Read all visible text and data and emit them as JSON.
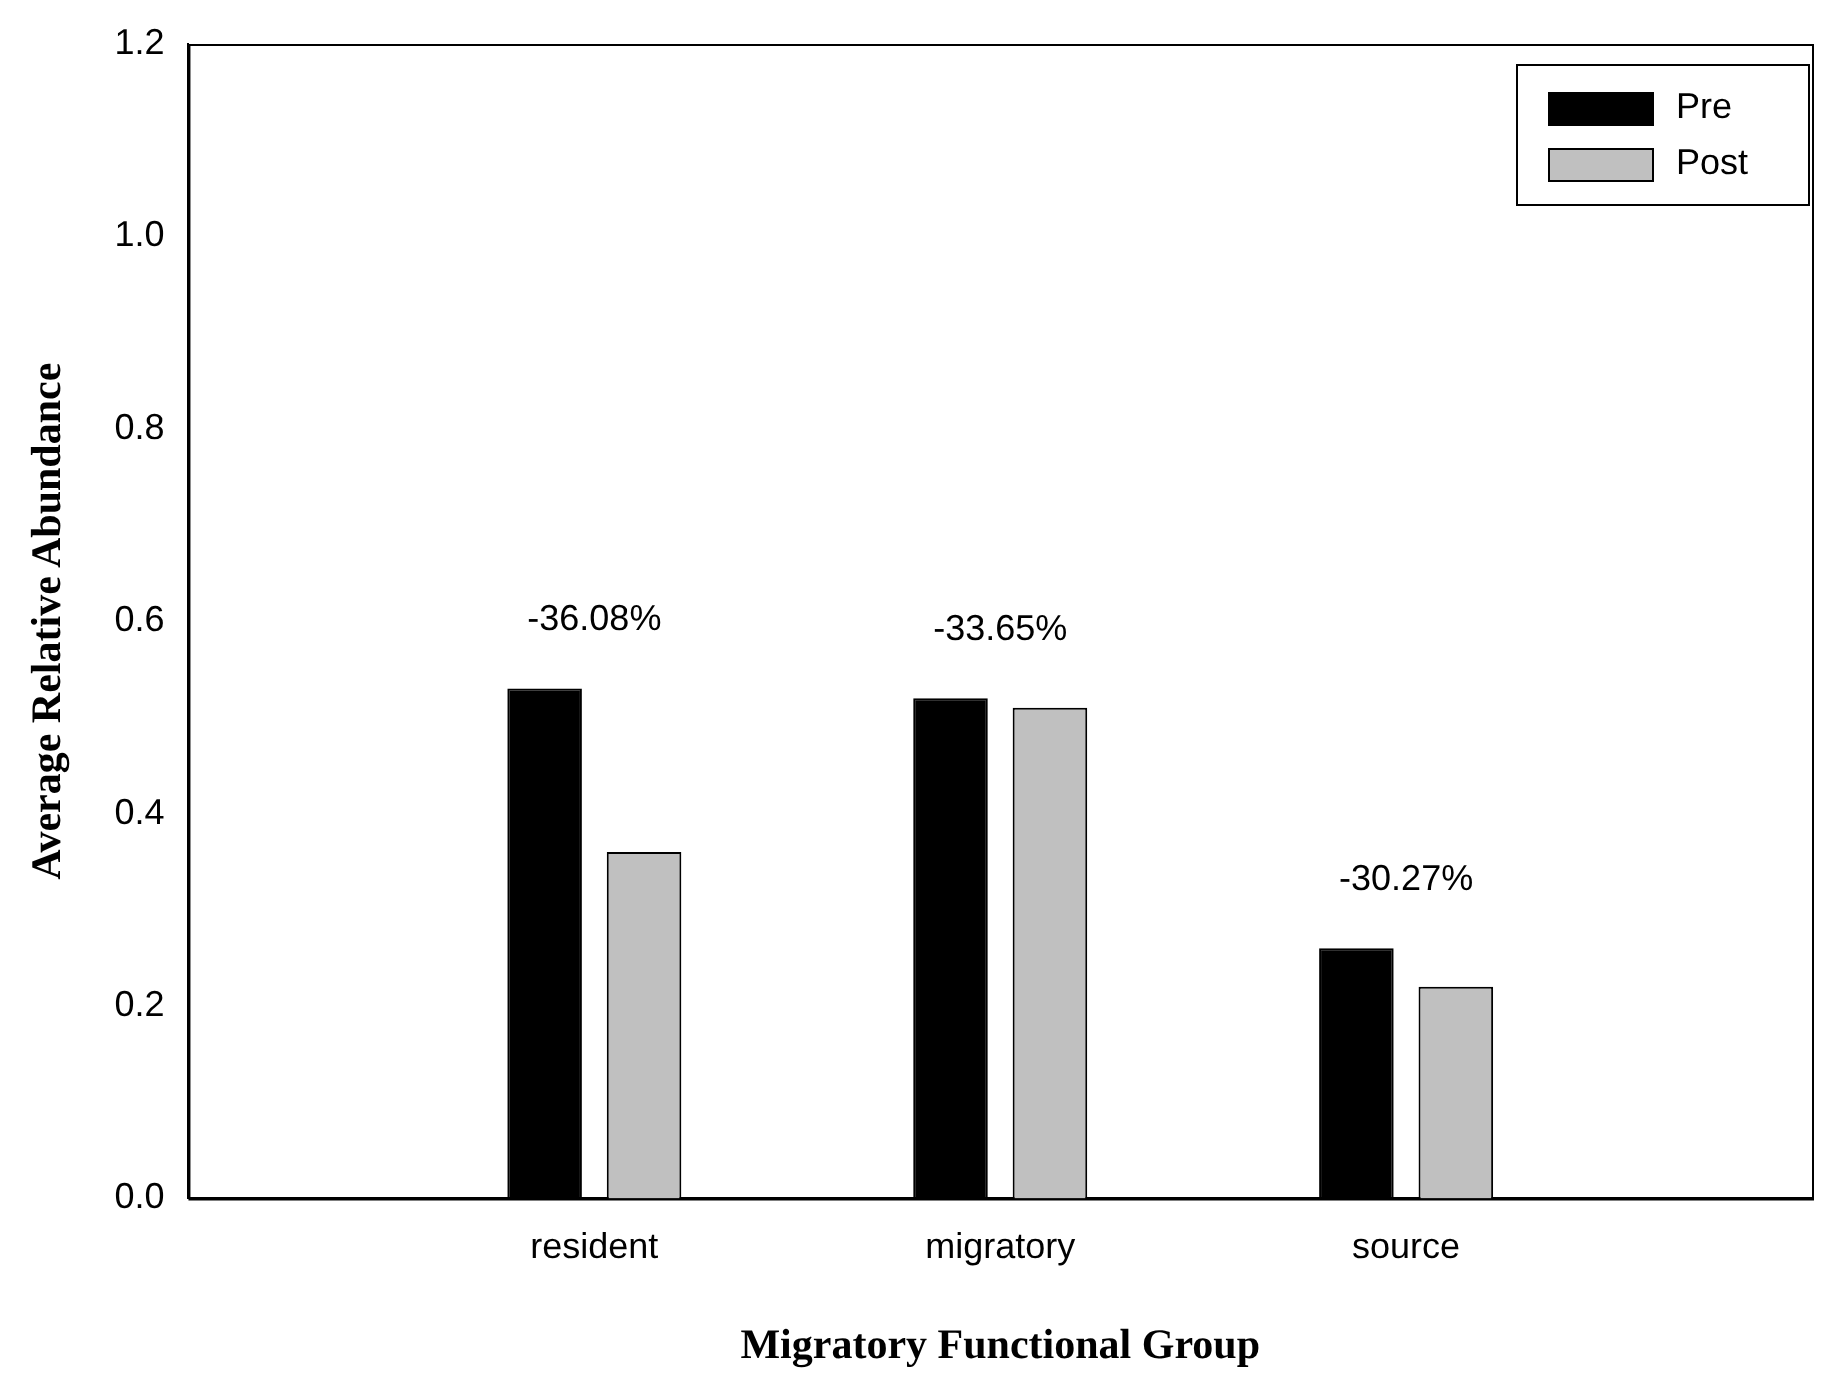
{
  "chart_data": {
    "type": "bar",
    "xlabel": "Migratory Functional Group",
    "ylabel": "Average Relative Abundance",
    "categories": [
      null,
      "resident",
      "migratory",
      "source",
      null
    ],
    "series": [
      {
        "name": "Pre",
        "color": "#000000",
        "values": [
          null,
          0.53,
          0.52,
          0.26,
          null
        ]
      },
      {
        "name": "Post",
        "color": "#c0c0c0",
        "values": [
          null,
          0.36,
          0.51,
          0.22,
          null
        ]
      }
    ],
    "ylim": [
      0,
      1.2
    ],
    "yticks": [
      {
        "value": 0,
        "label": "0.0"
      },
      {
        "value": 0.2,
        "label": "0.2"
      },
      {
        "value": 0.4,
        "label": "0.4"
      },
      {
        "value": 0.6,
        "label": "0.6"
      },
      {
        "value": 0.8,
        "label": "0.8"
      },
      {
        "value": 1,
        "label": "1.0"
      },
      {
        "value": 1.2,
        "label": "1.2"
      }
    ],
    "annotations": [
      "-36.08%",
      "-33.65%",
      "-30.27%"
    ],
    "legend": "top right",
    "grid": false
  }
}
